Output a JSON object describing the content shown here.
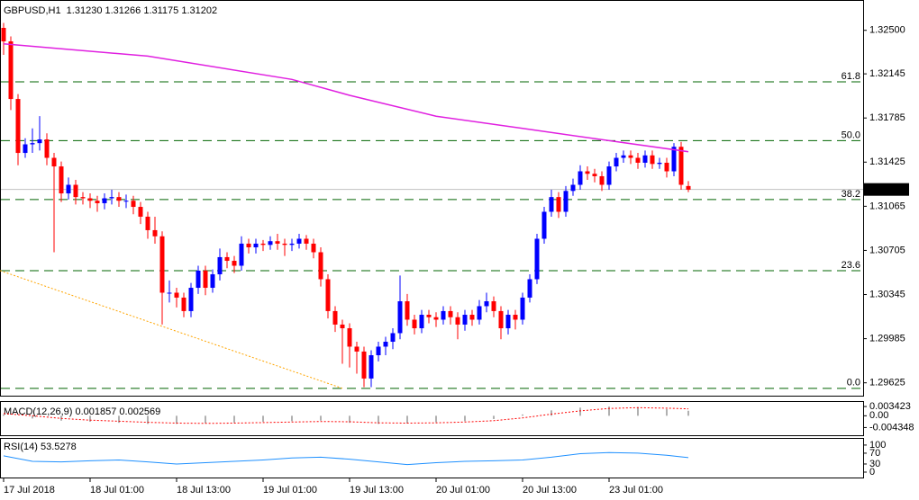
{
  "chart_data": [
    {
      "type": "candlestick",
      "title": "GBPUSD,H1  1.31230 1.31266 1.31175 1.31202",
      "open": [
        1.3252,
        1.3241,
        1.3194,
        1.315,
        1.3157,
        1.3158,
        1.3161,
        1.3146,
        1.3139,
        1.3117,
        1.3124,
        1.3114,
        1.3113,
        1.3111,
        1.3109,
        1.3113,
        1.3114,
        1.3111,
        1.3111,
        1.3106,
        1.3098,
        1.3087,
        1.3082,
        1.3036,
        1.3036,
        1.3032,
        1.3021,
        1.304,
        1.3054,
        1.304,
        1.3051,
        1.3065,
        1.3062,
        1.3058,
        1.3076,
        1.3073,
        1.3076,
        1.3075,
        1.3078,
        1.3076,
        1.3075,
        1.3076,
        1.308,
        1.3076,
        1.3069,
        1.3047,
        1.3021,
        1.301,
        1.3007,
        1.2992,
        1.2988,
        1.2966,
        1.2985,
        1.2992,
        1.2996,
        1.3003,
        1.3029,
        1.3014,
        1.3007,
        1.3018,
        1.3016,
        1.3014,
        1.3021,
        1.3016,
        1.301,
        1.3018,
        1.3014,
        1.3025,
        1.3029,
        1.3021,
        1.3007,
        1.3018,
        1.3014,
        1.3032,
        1.3047,
        1.308,
        1.3102,
        1.3114,
        1.3102,
        1.3119,
        1.3124,
        1.3135,
        1.3133,
        1.3131,
        1.3124,
        1.3139,
        1.3146,
        1.3148,
        1.3146,
        1.3142,
        1.3148,
        1.3141,
        1.3142,
        1.3135,
        1.3155,
        1.3123
      ],
      "high": [
        1.3256,
        1.3245,
        1.3198,
        1.3162,
        1.317,
        1.318,
        1.3166,
        1.315,
        1.3143,
        1.313,
        1.3128,
        1.3118,
        1.3117,
        1.3115,
        1.3117,
        1.312,
        1.3118,
        1.3116,
        1.3115,
        1.311,
        1.3102,
        1.3098,
        1.3086,
        1.3046,
        1.304,
        1.3036,
        1.3044,
        1.3058,
        1.3058,
        1.3055,
        1.3072,
        1.3069,
        1.3066,
        1.3082,
        1.308,
        1.308,
        1.3079,
        1.3082,
        1.3084,
        1.308,
        1.308,
        1.3084,
        1.3083,
        1.308,
        1.3073,
        1.3051,
        1.3025,
        1.3014,
        1.3011,
        1.2996,
        1.2992,
        1.2989,
        1.2996,
        1.3,
        1.3007,
        1.305,
        1.3035,
        1.3018,
        1.3022,
        1.3022,
        1.302,
        1.3025,
        1.3025,
        1.302,
        1.3022,
        1.3022,
        1.303,
        1.3036,
        1.3033,
        1.3025,
        1.3022,
        1.3022,
        1.3036,
        1.3051,
        1.3084,
        1.3106,
        1.312,
        1.3118,
        1.3123,
        1.3129,
        1.314,
        1.3139,
        1.3137,
        1.3135,
        1.3143,
        1.315,
        1.3152,
        1.3152,
        1.315,
        1.3152,
        1.3152,
        1.3146,
        1.3146,
        1.3158,
        1.3159,
        1.3127
      ],
      "low": [
        1.323,
        1.3185,
        1.314,
        1.3146,
        1.315,
        1.3152,
        1.314,
        1.3069,
        1.311,
        1.3112,
        1.3108,
        1.3108,
        1.3105,
        1.3102,
        1.3104,
        1.3108,
        1.3106,
        1.3105,
        1.31,
        1.3092,
        1.308,
        1.3076,
        1.301,
        1.3028,
        1.3024,
        1.3016,
        1.3016,
        1.3035,
        1.3034,
        1.3036,
        1.3046,
        1.3056,
        1.3052,
        1.3054,
        1.3068,
        1.3068,
        1.307,
        1.3071,
        1.3071,
        1.3066,
        1.307,
        1.3072,
        1.3071,
        1.3064,
        1.3041,
        1.3015,
        1.3004,
        1.2978,
        1.2975,
        1.297,
        1.2959,
        1.2959,
        1.298,
        1.2985,
        1.299,
        1.2998,
        1.3009,
        1.3002,
        1.3003,
        1.3011,
        1.3008,
        1.301,
        1.301,
        1.2998,
        1.3005,
        1.3009,
        1.301,
        1.302,
        1.3016,
        1.2998,
        1.3002,
        1.3006,
        1.301,
        1.3028,
        1.3043,
        1.3076,
        1.3098,
        1.3097,
        1.3098,
        1.3115,
        1.312,
        1.3128,
        1.3126,
        1.3119,
        1.312,
        1.3135,
        1.3142,
        1.3141,
        1.3137,
        1.3138,
        1.3137,
        1.3137,
        1.313,
        1.3131,
        1.312,
        1.3118
      ],
      "close": [
        1.3241,
        1.3194,
        1.315,
        1.3157,
        1.3158,
        1.3161,
        1.3146,
        1.3139,
        1.3117,
        1.3124,
        1.3114,
        1.3113,
        1.3111,
        1.3109,
        1.3113,
        1.3114,
        1.3111,
        1.3111,
        1.3106,
        1.3098,
        1.3087,
        1.3082,
        1.3036,
        1.3036,
        1.3032,
        1.3021,
        1.304,
        1.3054,
        1.304,
        1.3051,
        1.3065,
        1.3062,
        1.3058,
        1.3076,
        1.3073,
        1.3076,
        1.3075,
        1.3078,
        1.3076,
        1.3075,
        1.3076,
        1.308,
        1.3076,
        1.3069,
        1.3047,
        1.3021,
        1.301,
        1.3007,
        1.2992,
        1.2988,
        1.2966,
        1.2985,
        1.2992,
        1.2996,
        1.3003,
        1.3029,
        1.3014,
        1.3007,
        1.3018,
        1.3016,
        1.3014,
        1.3021,
        1.3016,
        1.301,
        1.3018,
        1.3014,
        1.3025,
        1.3029,
        1.3021,
        1.3007,
        1.3018,
        1.3014,
        1.3032,
        1.3047,
        1.308,
        1.3102,
        1.3114,
        1.3102,
        1.3119,
        1.3124,
        1.3135,
        1.3133,
        1.3131,
        1.3124,
        1.3139,
        1.3146,
        1.3148,
        1.3146,
        1.3142,
        1.3148,
        1.3141,
        1.3142,
        1.3135,
        1.3155,
        1.3124,
        1.312
      ],
      "bull_color": "#0000ff",
      "bear_color": "#ff0000",
      "xlim": [
        -0.5,
        119.25
      ],
      "ylim": [
        1.2952,
        1.3274
      ],
      "yticks": [
        {
          "value": 1.325,
          "label": "1.32500"
        },
        1.32145,
        1.31785,
        1.31425,
        1.31065,
        1.30705,
        1.30345,
        1.29985,
        1.29625
      ],
      "time_labels": {
        "x": [
          0,
          12,
          24,
          36,
          48,
          60,
          72,
          84
        ],
        "labels": [
          "17 Jul 2018",
          "18 Jul 01:00",
          "18 Jul 13:00",
          "19 Jul 01:00",
          "19 Jul 13:00",
          "20 Jul 01:00",
          "20 Jul 13:00",
          "23 Jul 01:00"
        ]
      },
      "ma": {
        "x": [
          0,
          20,
          40,
          48,
          60,
          72,
          84,
          95
        ],
        "values": [
          1.3239,
          1.3229,
          1.321,
          1.3197,
          1.318,
          1.317,
          1.316,
          1.3151
        ],
        "color": "#e020e0"
      },
      "trendline": {
        "x": [
          -0.5,
          47
        ],
        "values": [
          1.3054,
          1.2958
        ],
        "color": "#ffa500"
      },
      "fib_levels": [
        {
          "label": "61.8",
          "price": 1.3208
        },
        {
          "label": "50.0",
          "price": 1.316
        },
        {
          "label": "38.2",
          "price": 1.3112
        },
        {
          "label": "23.6",
          "price": 1.3054
        },
        {
          "label": "0.0",
          "price": 1.2958
        }
      ],
      "fib_color": "#006400",
      "bid": 1.31202
    },
    {
      "type": "macd",
      "label": "MACD(12,26,9) 0.001857 0.002569",
      "x": [
        0,
        4,
        8,
        12,
        16,
        20,
        24,
        28,
        32,
        36,
        40,
        44,
        48,
        52,
        56,
        60,
        64,
        68,
        72,
        76,
        80,
        84,
        88,
        92,
        95
      ],
      "macd": [
        0.0005,
        -0.001,
        -0.0018,
        -0.0022,
        -0.0026,
        -0.003,
        -0.003,
        -0.0027,
        -0.0025,
        -0.0022,
        -0.002,
        -0.0018,
        -0.0026,
        -0.003,
        -0.0028,
        -0.0024,
        -0.002,
        -0.0012,
        0.0005,
        0.002,
        0.003,
        0.0034,
        0.0032,
        0.0025,
        0.001857
      ],
      "signal": [
        0.0008,
        0.0,
        -0.001,
        -0.0016,
        -0.002,
        -0.0024,
        -0.0027,
        -0.0028,
        -0.0027,
        -0.0025,
        -0.0023,
        -0.0021,
        -0.0022,
        -0.0026,
        -0.0027,
        -0.0026,
        -0.0023,
        -0.0018,
        -0.0008,
        0.0006,
        0.0018,
        0.0027,
        0.003,
        0.0028,
        0.002569
      ],
      "macd_color": "#b0b0b0",
      "signal_color": "#ff0000",
      "xlim": [
        -0.5,
        119.25
      ],
      "ylim": [
        -0.0072,
        0.0051
      ],
      "yticks": [
        0.003423,
        {
          "value": 0,
          "label": "0.00"
        },
        -0.004348
      ]
    },
    {
      "type": "line",
      "label": "RSI(14) 53.5278",
      "x": [
        0,
        4,
        8,
        12,
        16,
        20,
        24,
        28,
        32,
        36,
        40,
        44,
        48,
        52,
        56,
        60,
        64,
        68,
        72,
        76,
        80,
        84,
        88,
        92,
        95
      ],
      "values": [
        60,
        40,
        38,
        42,
        45,
        38,
        30,
        35,
        40,
        45,
        52,
        55,
        48,
        38,
        28,
        35,
        40,
        42,
        45,
        55,
        68,
        72,
        70,
        62,
        53.5278
      ],
      "color": "#1e90ff",
      "xlim": [
        -0.5,
        119.25
      ],
      "ylim": [
        -20,
        123
      ],
      "yticks": [
        100,
        70,
        30,
        0
      ]
    }
  ]
}
